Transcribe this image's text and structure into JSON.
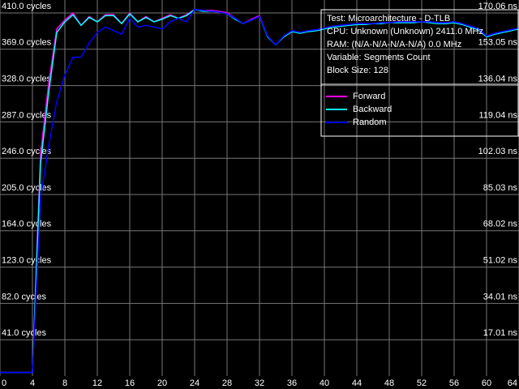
{
  "chart_data": {
    "type": "line",
    "info": [
      "Test: Microarchitecture - D-TLB",
      "CPU: Unknown (Unknown) 2411.0 MHz",
      "RAM:  (N/A-N/A-N/A-N/A) 0.0 MHz",
      "Variable: Segments Count",
      "Block Size: 128"
    ],
    "x": [
      0,
      1,
      2,
      3,
      4,
      5,
      6,
      7,
      8,
      9,
      10,
      11,
      12,
      13,
      14,
      15,
      16,
      17,
      18,
      19,
      20,
      21,
      22,
      23,
      24,
      25,
      26,
      27,
      28,
      29,
      30,
      31,
      32,
      33,
      34,
      35,
      36,
      37,
      38,
      39,
      40,
      41,
      42,
      43,
      44,
      45,
      46,
      47,
      48,
      49,
      50,
      51,
      52,
      53,
      54,
      55,
      56,
      57,
      58,
      59,
      60,
      61,
      62,
      63,
      64
    ],
    "series": [
      {
        "name": "Forward",
        "color": "#ff00ff",
        "values": [
          4,
          4,
          4,
          4,
          4,
          250,
          330,
          392,
          402,
          410,
          396,
          406,
          400,
          408,
          408,
          398,
          410,
          400,
          406,
          400,
          404,
          408,
          404,
          408,
          414,
          413,
          413,
          412,
          410,
          404,
          398,
          403,
          407,
          384,
          374,
          384,
          390,
          388,
          390,
          391,
          393,
          395,
          396,
          397,
          398,
          398,
          398,
          399,
          399,
          400,
          400,
          400,
          400,
          400,
          399,
          399,
          400,
          398,
          395,
          392,
          384,
          387,
          389,
          391,
          393
        ]
      },
      {
        "name": "Backward",
        "color": "#00ffff",
        "values": [
          4,
          4,
          4,
          4,
          4,
          240,
          320,
          388,
          400,
          408,
          396,
          405,
          400,
          407,
          407,
          398,
          409,
          400,
          405,
          400,
          403,
          407,
          404,
          407,
          414,
          412,
          412,
          411,
          409,
          403,
          398,
          402,
          406,
          383,
          374,
          383,
          389,
          387,
          389,
          390,
          392,
          394,
          395,
          396,
          397,
          397,
          398,
          398,
          399,
          399,
          399,
          399,
          400,
          399,
          398,
          398,
          399,
          397,
          394,
          391,
          383,
          386,
          388,
          390,
          392
        ]
      },
      {
        "name": "Random",
        "color": "#0000ff",
        "values": [
          4,
          4,
          4,
          4,
          4,
          200,
          260,
          310,
          340,
          360,
          360,
          376,
          388,
          394,
          390,
          386,
          404,
          394,
          396,
          394,
          392,
          400,
          404,
          400,
          414,
          413,
          412,
          411,
          409,
          404,
          398,
          402,
          406,
          384,
          374,
          384,
          390,
          388,
          390,
          391,
          393,
          395,
          396,
          397,
          398,
          398,
          398,
          399,
          399,
          400,
          400,
          400,
          400,
          400,
          399,
          399,
          400,
          398,
          395,
          392,
          384,
          387,
          389,
          391,
          393
        ]
      }
    ],
    "xlim": [
      0,
      64
    ],
    "xticks": [
      0,
      4,
      8,
      12,
      16,
      20,
      24,
      28,
      32,
      36,
      40,
      44,
      48,
      52,
      56,
      60,
      64
    ],
    "ylim": [
      0,
      410
    ],
    "yticks": [
      {
        "value": 41,
        "label": "41.0 cycles"
      },
      {
        "value": 82,
        "label": "82.0 cycles"
      },
      {
        "value": 123,
        "label": "123.0 cycles"
      },
      {
        "value": 164,
        "label": "164.0 cycles"
      },
      {
        "value": 205,
        "label": "205.0 cycles"
      },
      {
        "value": 246,
        "label": "246.0 cycles"
      },
      {
        "value": 287,
        "label": "287.0 cycles"
      },
      {
        "value": 328,
        "label": "328.0 cycles"
      },
      {
        "value": 369,
        "label": "369.0 cycles"
      },
      {
        "value": 410,
        "label": "410.0 cycles"
      }
    ],
    "y2lim": [
      0,
      170.06
    ],
    "y2ticks": [
      {
        "value": 17.01,
        "label": "17.01 ns"
      },
      {
        "value": 34.01,
        "label": "34.01 ns"
      },
      {
        "value": 51.02,
        "label": "51.02 ns"
      },
      {
        "value": 68.02,
        "label": "68.02 ns"
      },
      {
        "value": 85.03,
        "label": "85.03 ns"
      },
      {
        "value": 102.03,
        "label": "102.03 ns"
      },
      {
        "value": 119.04,
        "label": "119.04 ns"
      },
      {
        "value": 136.04,
        "label": "136.04 ns"
      },
      {
        "value": 153.05,
        "label": "153.05 ns"
      },
      {
        "value": 170.06,
        "label": "170.06 ns"
      }
    ],
    "grid": true
  }
}
